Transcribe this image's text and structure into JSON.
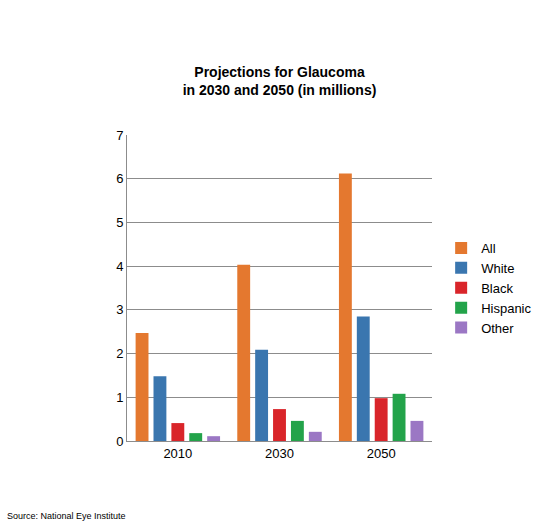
{
  "chart_data": {
    "type": "bar",
    "title": "Projections for Glaucoma\nin 2030 and 2050 (in millions)",
    "categories": [
      "2010",
      "2030",
      "2050"
    ],
    "series": [
      {
        "name": "All",
        "color": "#e4782f",
        "values": [
          2.47,
          4.03,
          6.12
        ]
      },
      {
        "name": "White",
        "color": "#3a76af",
        "values": [
          1.48,
          2.09,
          2.85
        ]
      },
      {
        "name": "Black",
        "color": "#d9252a",
        "values": [
          0.41,
          0.73,
          0.98
        ]
      },
      {
        "name": "Hispanic",
        "color": "#23a34a",
        "values": [
          0.18,
          0.46,
          1.08
        ]
      },
      {
        "name": "Other",
        "color": "#9b77c4",
        "values": [
          0.11,
          0.21,
          0.46
        ]
      }
    ],
    "ylim": [
      0,
      7
    ],
    "yticks": [
      0,
      1,
      2,
      3,
      4,
      5,
      6,
      7
    ],
    "grid": true,
    "legend": "right",
    "annotations": [
      "Source: National Eye Institute"
    ]
  }
}
